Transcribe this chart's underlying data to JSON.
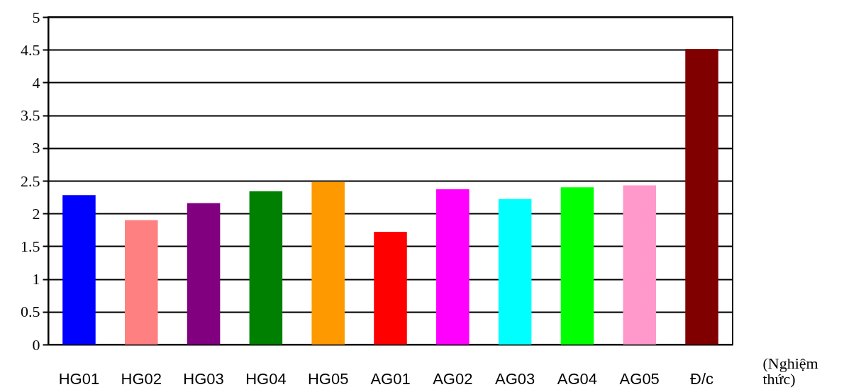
{
  "chart_data": {
    "type": "bar",
    "xlabel": "(Nghiệm thức)",
    "categories": [
      "HG01",
      "HG02",
      "HG03",
      "HG04",
      "HG05",
      "AG01",
      "AG02",
      "AG03",
      "AG04",
      "AG05",
      "Đ/c"
    ],
    "values": [
      2.28,
      1.9,
      2.16,
      2.34,
      2.48,
      1.72,
      2.37,
      2.22,
      2.4,
      2.43,
      4.51
    ],
    "colors": [
      "#0000ff",
      "#ff8080",
      "#800080",
      "#008000",
      "#ff9900",
      "#ff0000",
      "#ff00ff",
      "#00ffff",
      "#00ff00",
      "#ff99cc",
      "#800000"
    ],
    "ylim": [
      0,
      5
    ],
    "yticks": [
      0,
      0.5,
      1,
      1.5,
      2,
      2.5,
      3,
      3.5,
      4,
      4.5,
      5
    ],
    "grid": "y"
  }
}
